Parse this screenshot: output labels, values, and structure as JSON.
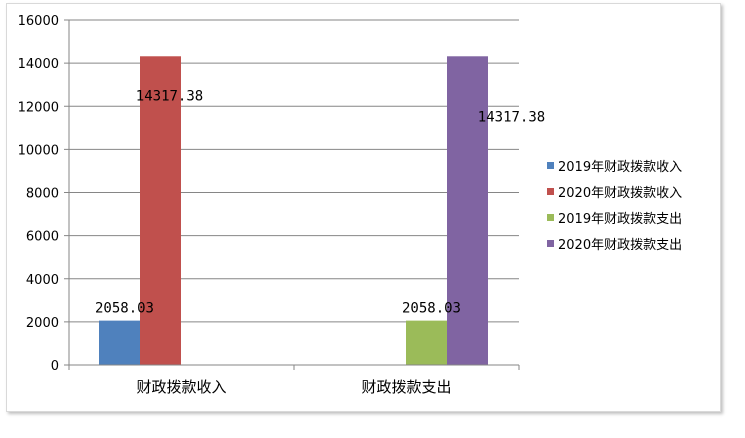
{
  "chart_data": {
    "type": "bar",
    "categories": [
      "财政拨款收入",
      "财政拨款支出"
    ],
    "series": [
      {
        "name": "2019年财政拨款收入",
        "color": "#4f81bd",
        "values": [
          2058.03,
          null
        ]
      },
      {
        "name": "2020年财政拨款收入",
        "color": "#c0504d",
        "values": [
          14317.38,
          null
        ]
      },
      {
        "name": "2019年财政拨款支出",
        "color": "#9bbb59",
        "values": [
          null,
          2058.03
        ]
      },
      {
        "name": "2020年财政拨款支出",
        "color": "#8064a2",
        "values": [
          null,
          14317.38
        ]
      }
    ],
    "data_labels": [
      "2058.03",
      "14317.38",
      "2058.03",
      "14317.38"
    ],
    "yticks": [
      "0",
      "2000",
      "4000",
      "6000",
      "8000",
      "10000",
      "12000",
      "14000",
      "16000"
    ],
    "ylim": [
      0,
      16000
    ],
    "grid": true,
    "legend_position": "right"
  }
}
